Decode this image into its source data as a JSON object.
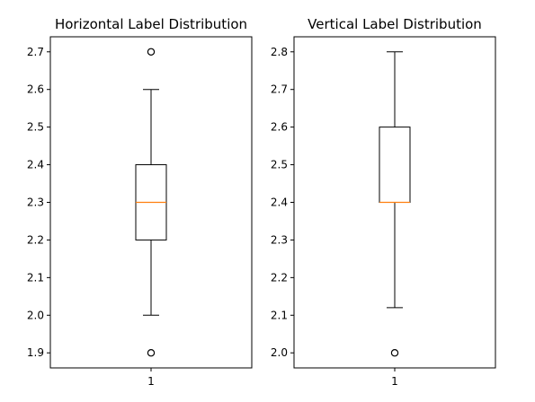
{
  "colors": {
    "box": "#000000",
    "median": "#ff7f0e",
    "background": "#ffffff"
  },
  "chart_data": [
    {
      "type": "box",
      "title": "Horizontal Label Distribution",
      "xlabel": "",
      "ylabel": "",
      "categories": [
        "1"
      ],
      "ylim": [
        1.86,
        2.74
      ],
      "yticks": [
        1.9,
        2.0,
        2.1,
        2.2,
        2.3,
        2.4,
        2.5,
        2.6,
        2.7
      ],
      "ytick_labels": [
        "1.9",
        "2.0",
        "2.1",
        "2.2",
        "2.3",
        "2.4",
        "2.5",
        "2.6",
        "2.7"
      ],
      "box": {
        "whisker_low": 2.0,
        "q1": 2.2,
        "median": 2.3,
        "q3": 2.4,
        "whisker_high": 2.6,
        "fliers": [
          1.9,
          2.7
        ]
      },
      "grid": false,
      "legend": "none"
    },
    {
      "type": "box",
      "title": "Vertical Label Distribution",
      "xlabel": "",
      "ylabel": "",
      "categories": [
        "1"
      ],
      "ylim": [
        1.96,
        2.84
      ],
      "yticks": [
        2.0,
        2.1,
        2.2,
        2.3,
        2.4,
        2.5,
        2.6,
        2.7,
        2.8
      ],
      "ytick_labels": [
        "2.0",
        "2.1",
        "2.2",
        "2.3",
        "2.4",
        "2.5",
        "2.6",
        "2.7",
        "2.8"
      ],
      "box": {
        "whisker_low": 2.12,
        "q1": 2.4,
        "median": 2.4,
        "q3": 2.6,
        "whisker_high": 2.8,
        "fliers": [
          2.0
        ]
      },
      "grid": false,
      "legend": "none"
    }
  ]
}
